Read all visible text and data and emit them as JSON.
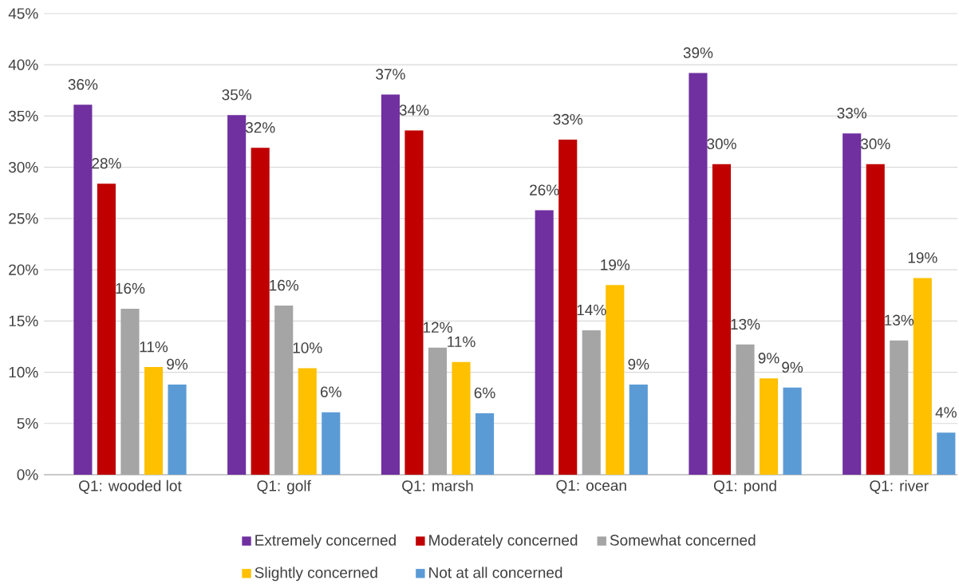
{
  "chart_data": {
    "type": "bar",
    "categories": [
      "Q1: wooded lot",
      "Q1: golf",
      "Q1: marsh",
      "Q1: ocean",
      "Q1: pond",
      "Q1: river"
    ],
    "series": [
      {
        "name": "Extremely concerned",
        "color": "#7030a0",
        "values": [
          36.1,
          35.1,
          37.1,
          25.8,
          39.2,
          33.3
        ],
        "value_labels": [
          "36%",
          "35%",
          "37%",
          "26%",
          "39%",
          "33%"
        ]
      },
      {
        "name": "Moderately concerned",
        "color": "#c00000",
        "values": [
          28.4,
          31.9,
          33.6,
          32.7,
          30.3,
          30.3
        ],
        "value_labels": [
          "28%",
          "32%",
          "34%",
          "33%",
          "30%",
          "30%"
        ]
      },
      {
        "name": "Somewhat concerned",
        "color": "#a5a5a5",
        "values": [
          16.2,
          16.5,
          12.4,
          14.1,
          12.7,
          13.1
        ],
        "value_labels": [
          "16%",
          "16%",
          "12%",
          "14%",
          "13%",
          "13%"
        ]
      },
      {
        "name": "Slightly concerned",
        "color": "#ffc000",
        "values": [
          10.5,
          10.4,
          11.0,
          18.5,
          9.4,
          19.2
        ],
        "value_labels": [
          "11%",
          "10%",
          "11%",
          "19%",
          "9%",
          "19%"
        ]
      },
      {
        "name": "Not at all concerned",
        "color": "#5b9bd5",
        "values": [
          8.8,
          6.1,
          6.0,
          8.8,
          8.5,
          4.1
        ],
        "value_labels": [
          "9%",
          "6%",
          "6%",
          "9%",
          "9%",
          "4%"
        ]
      }
    ],
    "ylim": [
      0,
      45
    ],
    "yticks": [
      {
        "value": 0,
        "label": "0%"
      },
      {
        "value": 5,
        "label": "5%"
      },
      {
        "value": 10,
        "label": "10%"
      },
      {
        "value": 15,
        "label": "15%"
      },
      {
        "value": 20,
        "label": "20%"
      },
      {
        "value": 25,
        "label": "25%"
      },
      {
        "value": 30,
        "label": "30%"
      },
      {
        "value": 35,
        "label": "35%"
      },
      {
        "value": 40,
        "label": "40%"
      },
      {
        "value": 45,
        "label": "45%"
      }
    ],
    "grid": "y",
    "legend": "bottom"
  }
}
